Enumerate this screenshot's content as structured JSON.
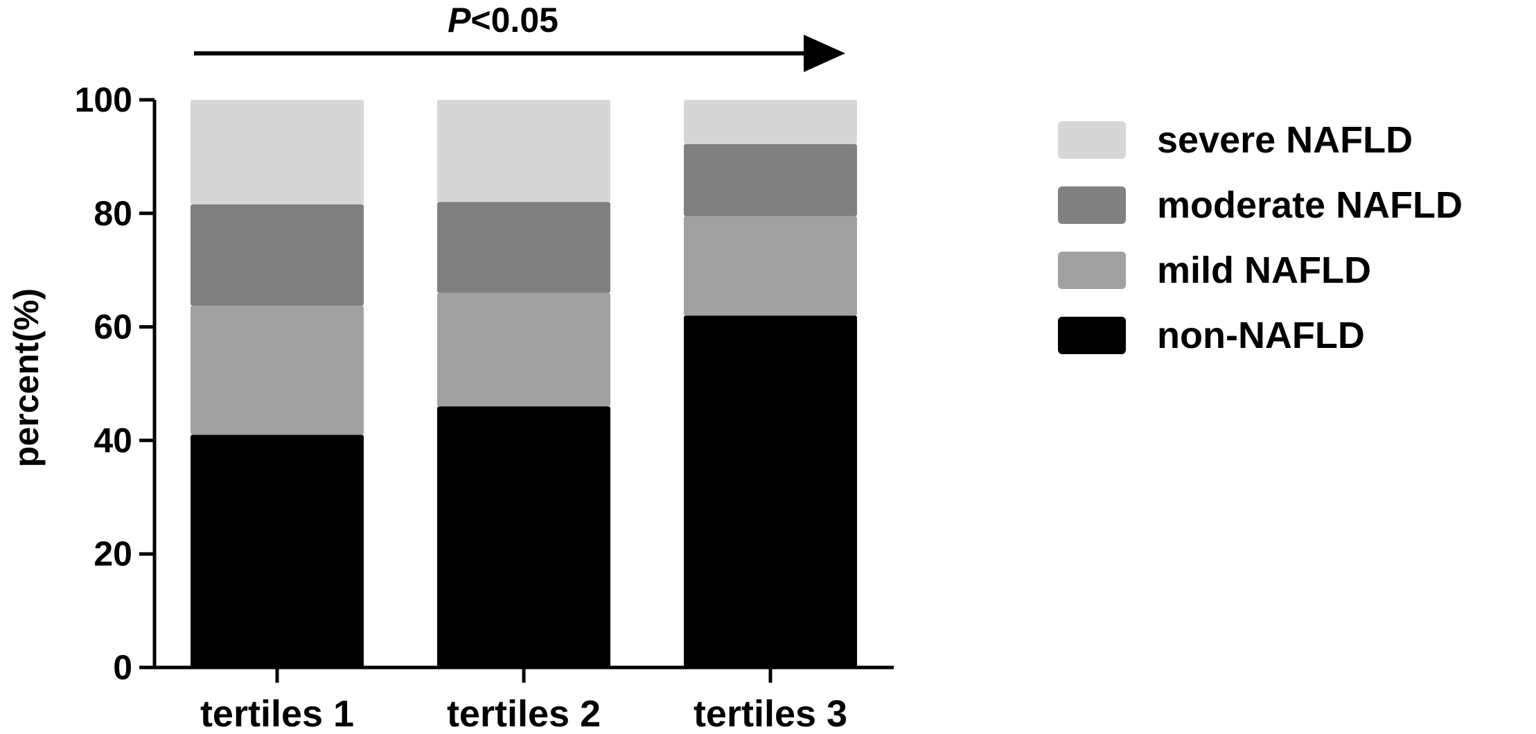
{
  "chart_data": {
    "type": "bar",
    "stacked": true,
    "categories": [
      "tertiles 1",
      "tertiles 2",
      "tertiles 3"
    ],
    "ylabel": "percent(%)",
    "xlabel": "",
    "ylim": [
      0,
      100
    ],
    "yticks": [
      "0",
      "20",
      "40",
      "60",
      "80",
      "100"
    ],
    "annotation": {
      "prefix": "P",
      "suffix": "<0.05"
    },
    "legend_position": "right",
    "grid": false,
    "series": [
      {
        "name": "non-NAFLD",
        "color": "#000000",
        "values": [
          41,
          46,
          62
        ]
      },
      {
        "name": "mild NAFLD",
        "color": "#a1a1a4",
        "values": [
          22.7,
          20,
          17.5
        ]
      },
      {
        "name": "moderate NAFLD",
        "color": "#808080",
        "values": [
          17.9,
          16,
          12.7
        ]
      },
      {
        "name": "severe NAFLD",
        "color": "#d6d6d6",
        "values": [
          18.4,
          18,
          7.8
        ]
      }
    ],
    "legend_order": [
      "severe NAFLD",
      "moderate NAFLD",
      "mild NAFLD",
      "non-NAFLD"
    ]
  }
}
